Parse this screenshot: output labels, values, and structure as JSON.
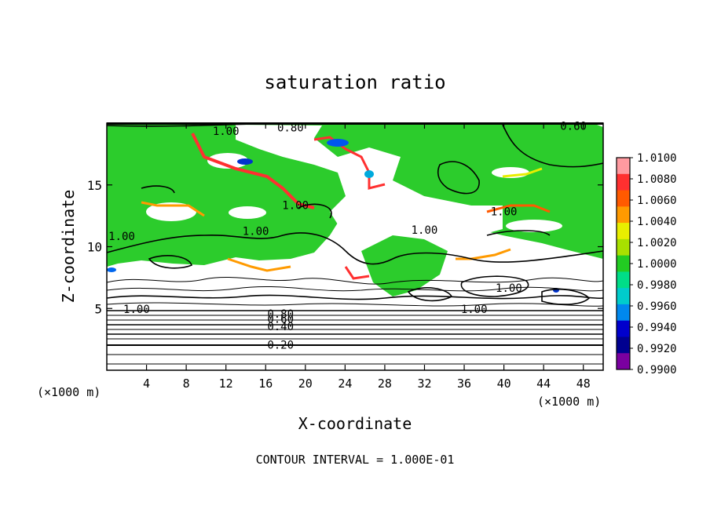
{
  "chart_data": {
    "type": "heatmap",
    "title": "saturation ratio",
    "xlabel": "X-coordinate",
    "ylabel": "Z-coordinate",
    "x_unit_left": "(×1000 m)",
    "x_unit_right": "(×1000 m)",
    "xlim": [
      0,
      50
    ],
    "ylim": [
      0,
      20
    ],
    "x_ticks": [
      4,
      8,
      12,
      16,
      20,
      24,
      28,
      32,
      36,
      40,
      44,
      48
    ],
    "y_ticks": [
      5,
      10,
      15
    ],
    "colorbar": {
      "labels": [
        "1.0100",
        "1.0080",
        "1.0060",
        "1.0040",
        "1.0020",
        "1.0000",
        "0.9980",
        "0.9960",
        "0.9940",
        "0.9920",
        "0.9900"
      ],
      "colors": [
        "#ff9aa0",
        "#ff3030",
        "#ff5a00",
        "#ff9a00",
        "#e8ee00",
        "#a8e000",
        "#22cc22",
        "#00dd88",
        "#00cccc",
        "#0088ee",
        "#0000cc",
        "#000090",
        "#7a00a0"
      ]
    },
    "contour_labels": [
      {
        "text": "1.00",
        "x": 12,
        "z": 19.3
      },
      {
        "text": "0.80",
        "x": 18.5,
        "z": 19.6
      },
      {
        "text": "0.60",
        "x": 47,
        "z": 19.7
      },
      {
        "text": "1.00",
        "x": 19,
        "z": 13.3
      },
      {
        "text": "1.00",
        "x": 15,
        "z": 11.2
      },
      {
        "text": "1.00",
        "x": 1.5,
        "z": 10.8
      },
      {
        "text": "1.00",
        "x": 32,
        "z": 11.3
      },
      {
        "text": "1.00",
        "x": 40,
        "z": 12.8
      },
      {
        "text": "1.00",
        "x": 40.5,
        "z": 6.6
      },
      {
        "text": "1.00",
        "x": 3,
        "z": 4.9
      },
      {
        "text": "1.00",
        "x": 37,
        "z": 4.9
      },
      {
        "text": "0.80",
        "x": 17.5,
        "z": 4.5
      },
      {
        "text": "0.60",
        "x": 17.5,
        "z": 4.1
      },
      {
        "text": "0.40",
        "x": 17.5,
        "z": 3.5
      },
      {
        "text": "0.20",
        "x": 17.5,
        "z": 2.0
      }
    ],
    "contour_interval_label": "CONTOUR INTERVAL = 1.000E-01"
  }
}
